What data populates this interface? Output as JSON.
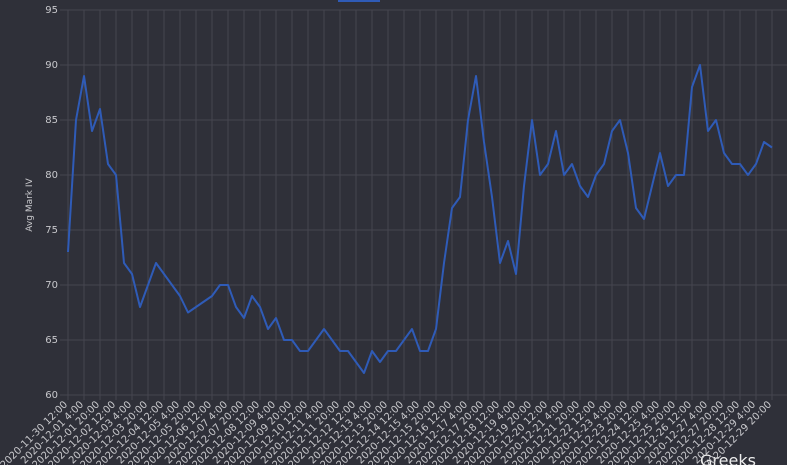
{
  "chart_data": {
    "type": "line",
    "y_label": "Avg Mark IV",
    "watermark": "Greeks",
    "ylim": [
      60,
      95
    ],
    "yticks": [
      60,
      65,
      70,
      75,
      80,
      85,
      90,
      95
    ],
    "grid": true,
    "categories": [
      "2020-11-30 12:00",
      null,
      "2020-12-01 4:00",
      null,
      "2020-12-01 20:00",
      null,
      "2020-12-02 12:00",
      null,
      "2020-12-03 4:00",
      null,
      "2020-12-03 20:00",
      null,
      "2020-12-04 12:00",
      null,
      "2020-12-05 4:00",
      null,
      "2020-12-05 20:00",
      null,
      "2020-12-06 12:00",
      null,
      "2020-12-07 4:00",
      null,
      "2020-12-07 20:00",
      null,
      "2020-12-08 12:00",
      null,
      "2020-12-09 4:00",
      null,
      "2020-12-09 20:00",
      null,
      "2020-12-10 12:00",
      null,
      "2020-12-11 4:00",
      null,
      "2020-12-11 20:00",
      null,
      "2020-12-12 12:00",
      null,
      "2020-12-13 4:00",
      null,
      "2020-12-13 20:00",
      null,
      "2020-12-14 12:00",
      null,
      "2020-12-15 4:00",
      null,
      "2020-12-15 20:00",
      null,
      "2020-12-16 12:00",
      null,
      "2020-12-17 4:00",
      null,
      "2020-12-17 20:00",
      null,
      "2020-12-18 12:00",
      null,
      "2020-12-19 4:00",
      null,
      "2020-12-19 20:00",
      null,
      "2020-12-20 12:00",
      null,
      "2020-12-21 4:00",
      null,
      "2020-12-21 20:00",
      null,
      "2020-12-22 12:00",
      null,
      "2020-12-23 4:00",
      null,
      "2020-12-23 20:00",
      null,
      "2020-12-24 12:00",
      null,
      "2020-12-25 4:00",
      null,
      "2020-12-25 20:00",
      null,
      "2020-12-26 12:00",
      null,
      "2020-12-27 4:00",
      null,
      "2020-12-27 20:00",
      null,
      "2020-12-28 12:00",
      null,
      "2020-12-29 4:00",
      null,
      "2020-12-29 20:00"
    ],
    "series": [
      {
        "color": "#2f5bb7",
        "values": [
          73,
          85,
          89,
          84,
          86,
          81,
          80,
          72,
          71,
          68,
          70,
          72,
          71,
          70,
          69,
          67.5,
          68,
          68.5,
          69,
          70,
          70,
          68,
          67,
          69,
          68,
          66,
          67,
          65,
          65,
          64,
          64,
          65,
          66,
          65,
          64,
          64,
          63,
          62,
          64,
          63,
          64,
          64,
          65,
          66,
          64,
          64,
          66,
          72,
          77,
          78,
          85,
          89,
          83,
          78,
          72,
          74,
          71,
          79,
          85,
          80,
          81,
          84,
          80,
          81,
          79,
          78,
          80,
          81,
          84,
          85,
          82,
          77,
          76,
          79,
          82,
          79,
          80,
          80,
          88,
          90,
          84,
          85,
          82,
          81,
          81,
          80,
          81,
          83,
          82.5
        ]
      }
    ]
  }
}
